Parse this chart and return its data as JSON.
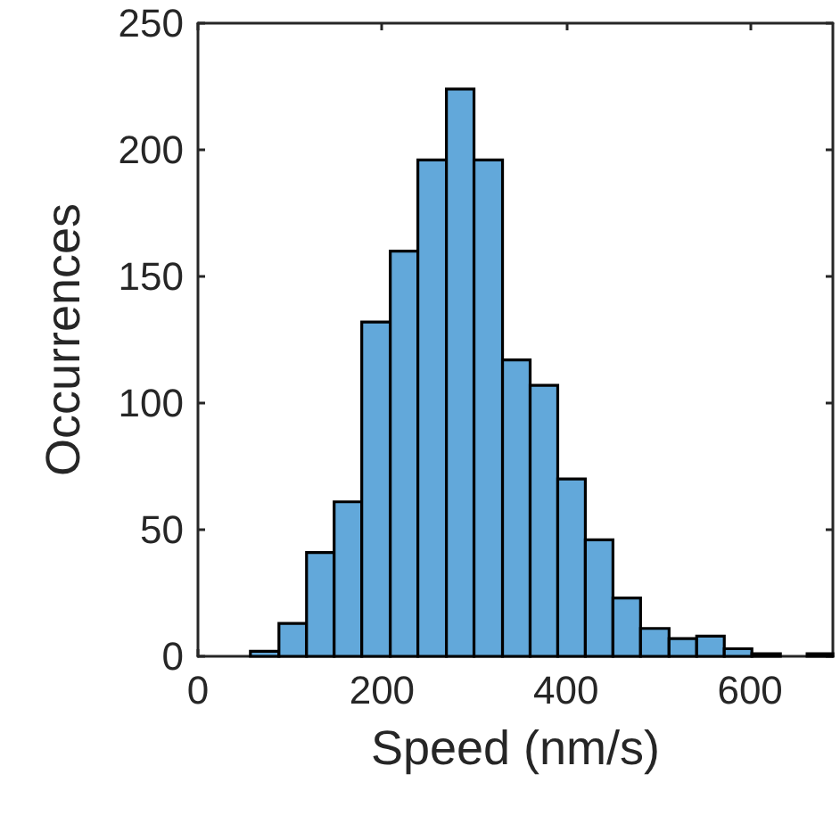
{
  "chart_data": {
    "type": "histogram",
    "xlabel": "Speed (nm/s)",
    "ylabel": "Occurrences",
    "bins": [
      57,
      88,
      118,
      148,
      178,
      209,
      239,
      270,
      300,
      331,
      361,
      391,
      421,
      451,
      481,
      512,
      542,
      572,
      602,
      633,
      662,
      690
    ],
    "values": [
      2,
      13,
      41,
      61,
      132,
      160,
      196,
      224,
      196,
      117,
      107,
      70,
      46,
      23,
      11,
      7,
      8,
      3,
      1,
      0,
      1
    ],
    "color": "#62a8da",
    "xlim": [
      0,
      690
    ],
    "xticks": [
      0,
      200,
      400,
      600
    ],
    "ylim": [
      0,
      250
    ],
    "yticks": [
      0,
      50,
      100,
      150,
      200,
      250
    ],
    "grid": false
  }
}
